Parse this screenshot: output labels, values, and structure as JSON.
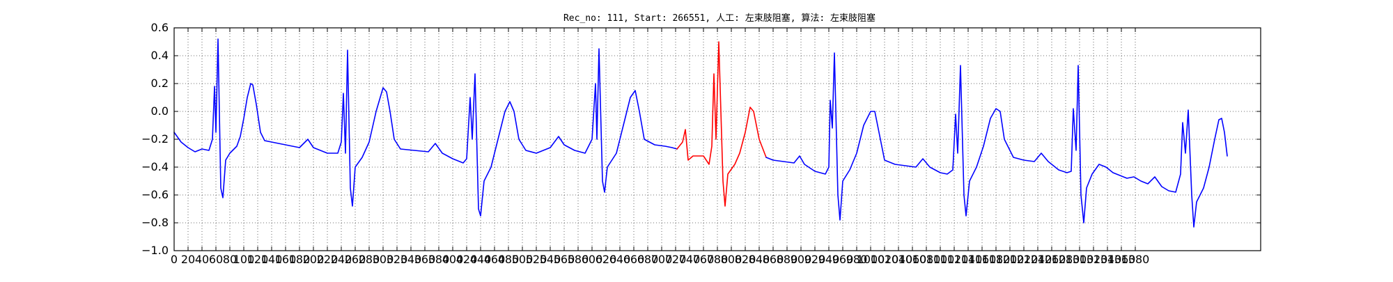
{
  "chart_data": {
    "type": "line",
    "title": "Rec_no: 111, Start: 266551, 人工: 左束肢阻塞, 算法: 左束肢阻塞",
    "xlabel": "",
    "ylabel": "",
    "xlim": [
      0,
      1560
    ],
    "ylim": [
      -1.0,
      0.6
    ],
    "grid": true,
    "yticks": [
      0.6,
      0.4,
      0.2,
      0.0,
      -0.2,
      -0.4,
      -0.6,
      -0.8,
      -1.0
    ],
    "ytick_labels": [
      "0.6",
      "0.4",
      "0.2",
      "0.0",
      "−0.2",
      "−0.4",
      "−0.6",
      "−0.8",
      "−1.0"
    ],
    "xtick_step": 20,
    "xtick_max": 1380,
    "colors": {
      "normal": "#0000ff",
      "highlight": "#ff0000"
    },
    "series": [
      {
        "color": "#0000ff",
        "points": [
          [
            0,
            -0.15
          ],
          [
            10,
            -0.22
          ],
          [
            20,
            -0.26
          ],
          [
            30,
            -0.29
          ],
          [
            40,
            -0.27
          ],
          [
            50,
            -0.28
          ],
          [
            55,
            -0.2
          ],
          [
            58,
            0.18
          ],
          [
            60,
            -0.15
          ],
          [
            63,
            0.52
          ],
          [
            67,
            -0.55
          ],
          [
            70,
            -0.62
          ],
          [
            74,
            -0.35
          ],
          [
            80,
            -0.3
          ],
          [
            90,
            -0.25
          ],
          [
            95,
            -0.18
          ],
          [
            100,
            -0.05
          ],
          [
            105,
            0.1
          ],
          [
            110,
            0.2
          ],
          [
            113,
            0.19
          ],
          [
            118,
            0.05
          ],
          [
            124,
            -0.15
          ],
          [
            130,
            -0.21
          ],
          [
            140,
            -0.22
          ],
          [
            160,
            -0.24
          ],
          [
            180,
            -0.26
          ],
          [
            192,
            -0.2
          ],
          [
            200,
            -0.26
          ],
          [
            220,
            -0.3
          ],
          [
            235,
            -0.3
          ],
          [
            240,
            -0.22
          ],
          [
            243,
            0.13
          ],
          [
            246,
            -0.3
          ],
          [
            249,
            0.44
          ],
          [
            253,
            -0.55
          ],
          [
            256,
            -0.68
          ],
          [
            260,
            -0.4
          ],
          [
            270,
            -0.33
          ],
          [
            280,
            -0.22
          ],
          [
            290,
            0.0
          ],
          [
            300,
            0.17
          ],
          [
            305,
            0.14
          ],
          [
            310,
            0.0
          ],
          [
            316,
            -0.2
          ],
          [
            325,
            -0.27
          ],
          [
            345,
            -0.28
          ],
          [
            365,
            -0.29
          ],
          [
            375,
            -0.23
          ],
          [
            385,
            -0.3
          ],
          [
            400,
            -0.34
          ],
          [
            415,
            -0.37
          ],
          [
            420,
            -0.34
          ],
          [
            425,
            0.1
          ],
          [
            428,
            -0.2
          ],
          [
            432,
            0.27
          ],
          [
            437,
            -0.7
          ],
          [
            440,
            -0.75
          ],
          [
            445,
            -0.5
          ],
          [
            455,
            -0.4
          ],
          [
            465,
            -0.2
          ],
          [
            475,
            0.0
          ],
          [
            482,
            0.07
          ],
          [
            488,
            0.0
          ],
          [
            495,
            -0.2
          ],
          [
            505,
            -0.28
          ],
          [
            520,
            -0.3
          ],
          [
            540,
            -0.26
          ],
          [
            552,
            -0.18
          ],
          [
            560,
            -0.24
          ],
          [
            575,
            -0.28
          ],
          [
            590,
            -0.3
          ],
          [
            600,
            -0.2
          ],
          [
            605,
            0.2
          ],
          [
            607,
            -0.2
          ],
          [
            610,
            0.45
          ],
          [
            615,
            -0.5
          ],
          [
            618,
            -0.58
          ],
          [
            622,
            -0.4
          ],
          [
            635,
            -0.3
          ],
          [
            645,
            -0.1
          ],
          [
            655,
            0.1
          ],
          [
            662,
            0.15
          ],
          [
            668,
            0.0
          ],
          [
            675,
            -0.2
          ],
          [
            690,
            -0.24
          ],
          [
            705,
            -0.25
          ],
          [
            715,
            -0.26
          ],
          [
            722,
            -0.27
          ]
        ]
      },
      {
        "color": "#ff0000",
        "points": [
          [
            722,
            -0.27
          ],
          [
            730,
            -0.22
          ],
          [
            734,
            -0.13
          ],
          [
            738,
            -0.35
          ],
          [
            745,
            -0.32
          ],
          [
            760,
            -0.32
          ],
          [
            768,
            -0.38
          ],
          [
            772,
            -0.25
          ],
          [
            775,
            0.27
          ],
          [
            778,
            -0.2
          ],
          [
            782,
            0.5
          ],
          [
            788,
            -0.5
          ],
          [
            791,
            -0.68
          ],
          [
            795,
            -0.45
          ],
          [
            805,
            -0.38
          ],
          [
            812,
            -0.3
          ],
          [
            820,
            -0.15
          ],
          [
            827,
            0.03
          ],
          [
            832,
            0.0
          ],
          [
            840,
            -0.2
          ],
          [
            850,
            -0.33
          ]
        ]
      },
      {
        "color": "#0000ff",
        "points": [
          [
            850,
            -0.33
          ],
          [
            860,
            -0.35
          ],
          [
            875,
            -0.36
          ],
          [
            890,
            -0.37
          ],
          [
            898,
            -0.32
          ],
          [
            905,
            -0.38
          ],
          [
            920,
            -0.43
          ],
          [
            935,
            -0.45
          ],
          [
            940,
            -0.4
          ],
          [
            942,
            0.08
          ],
          [
            945,
            -0.12
          ],
          [
            948,
            0.42
          ],
          [
            953,
            -0.6
          ],
          [
            956,
            -0.78
          ],
          [
            960,
            -0.5
          ],
          [
            970,
            -0.42
          ],
          [
            980,
            -0.3
          ],
          [
            990,
            -0.1
          ],
          [
            1000,
            0.0
          ],
          [
            1006,
            0.0
          ],
          [
            1012,
            -0.15
          ],
          [
            1020,
            -0.35
          ],
          [
            1035,
            -0.38
          ],
          [
            1050,
            -0.39
          ],
          [
            1065,
            -0.4
          ],
          [
            1075,
            -0.34
          ],
          [
            1085,
            -0.4
          ],
          [
            1100,
            -0.44
          ],
          [
            1110,
            -0.45
          ],
          [
            1118,
            -0.42
          ],
          [
            1122,
            -0.02
          ],
          [
            1125,
            -0.3
          ],
          [
            1129,
            0.33
          ],
          [
            1134,
            -0.6
          ],
          [
            1137,
            -0.75
          ],
          [
            1142,
            -0.5
          ],
          [
            1152,
            -0.4
          ],
          [
            1162,
            -0.25
          ],
          [
            1172,
            -0.05
          ],
          [
            1180,
            0.02
          ],
          [
            1186,
            0.0
          ],
          [
            1192,
            -0.2
          ],
          [
            1205,
            -0.33
          ],
          [
            1220,
            -0.35
          ],
          [
            1235,
            -0.36
          ],
          [
            1245,
            -0.3
          ],
          [
            1255,
            -0.36
          ],
          [
            1270,
            -0.42
          ],
          [
            1282,
            -0.44
          ],
          [
            1288,
            -0.43
          ],
          [
            1291,
            0.02
          ],
          [
            1295,
            -0.28
          ],
          [
            1298,
            0.33
          ],
          [
            1302,
            -0.6
          ],
          [
            1306,
            -0.8
          ],
          [
            1310,
            -0.55
          ],
          [
            1318,
            -0.45
          ],
          [
            1328,
            -0.38
          ],
          [
            1338,
            -0.4
          ],
          [
            1348,
            -0.44
          ],
          [
            1358,
            -0.46
          ],
          [
            1368,
            -0.48
          ],
          [
            1378,
            -0.47
          ],
          [
            1388,
            -0.5
          ],
          [
            1398,
            -0.52
          ],
          [
            1408,
            -0.47
          ],
          [
            1418,
            -0.54
          ],
          [
            1428,
            -0.57
          ],
          [
            1438,
            -0.58
          ],
          [
            1445,
            -0.45
          ],
          [
            1448,
            -0.08
          ],
          [
            1452,
            -0.3
          ],
          [
            1456,
            0.01
          ],
          [
            1461,
            -0.6
          ],
          [
            1464,
            -0.83
          ],
          [
            1468,
            -0.65
          ],
          [
            1478,
            -0.55
          ],
          [
            1486,
            -0.4
          ],
          [
            1494,
            -0.2
          ],
          [
            1500,
            -0.06
          ],
          [
            1504,
            -0.05
          ],
          [
            1508,
            -0.15
          ],
          [
            1512,
            -0.32
          ]
        ]
      }
    ]
  }
}
